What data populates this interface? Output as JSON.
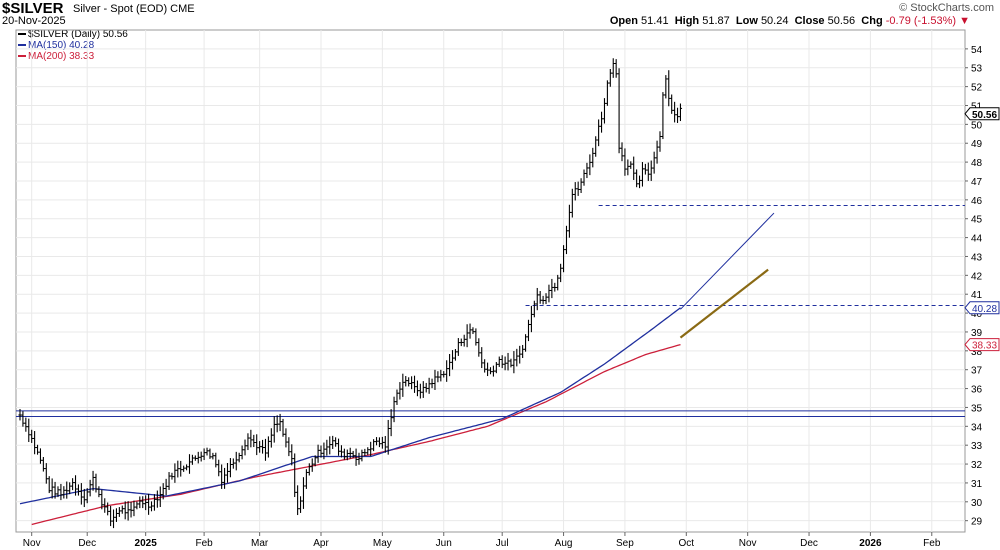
{
  "header": {
    "symbol": "$SILVER",
    "description": "Silver - Spot (EOD) CME",
    "date": "20-Nov-2025",
    "brand": "© StockCharts.com",
    "open_label": "Open",
    "open": "51.41",
    "high_label": "High",
    "high": "51.87",
    "low_label": "Low",
    "low": "50.24",
    "close_label": "Close",
    "close": "50.56",
    "chg_label": "Chg",
    "chg": "-0.79 (-1.53%)",
    "chg_arrow": "▼"
  },
  "legend": {
    "price": "$SILVER (Daily) 50.56",
    "ma150": "MA(150) 40.28",
    "ma200": "MA(200) 38.33"
  },
  "colors": {
    "price": "#000000",
    "ma150": "#1f2f9e",
    "ma200": "#cc1f3a",
    "trend_brown": "#8a6a14",
    "level": "#1f2f9e",
    "grid": "#e9e9e9"
  },
  "chart_data": {
    "type": "candlestick",
    "title": "$SILVER Silver - Spot (EOD) CME",
    "ylim": [
      28.4,
      55.0
    ],
    "y_ticks": [
      29,
      30,
      31,
      32,
      33,
      34,
      35,
      36,
      37,
      38,
      39,
      40,
      41,
      42,
      43,
      44,
      45,
      46,
      47,
      48,
      49,
      50,
      51,
      52,
      53,
      54
    ],
    "x_ticks": [
      "Nov",
      "Dec",
      "2025",
      "Feb",
      "Mar",
      "Apr",
      "May",
      "Jun",
      "Jul",
      "Aug",
      "Sep",
      "Oct",
      "Nov",
      "Dec",
      "2026",
      "Feb"
    ],
    "x_tick_index": [
      4,
      23,
      43,
      63,
      82,
      103,
      124,
      145,
      165,
      186,
      207,
      228,
      249,
      270,
      291,
      312
    ],
    "price_anchors": [
      [
        0,
        34.6
      ],
      [
        3,
        33.7
      ],
      [
        7,
        32.2
      ],
      [
        10,
        30.7
      ],
      [
        14,
        30.4
      ],
      [
        18,
        31.0
      ],
      [
        22,
        30.2
      ],
      [
        25,
        31.2
      ],
      [
        28,
        30.0
      ],
      [
        31,
        29.0
      ],
      [
        34,
        29.6
      ],
      [
        38,
        29.4
      ],
      [
        41,
        30.1
      ],
      [
        44,
        29.8
      ],
      [
        48,
        30.4
      ],
      [
        52,
        31.5
      ],
      [
        56,
        31.9
      ],
      [
        60,
        32.3
      ],
      [
        63,
        32.7
      ],
      [
        66,
        32.4
      ],
      [
        69,
        31.2
      ],
      [
        72,
        31.9
      ],
      [
        75,
        32.6
      ],
      [
        78,
        33.4
      ],
      [
        81,
        33.0
      ],
      [
        84,
        32.6
      ],
      [
        87,
        34.0
      ],
      [
        89,
        34.2
      ],
      [
        91,
        33.0
      ],
      [
        93,
        32.2
      ],
      [
        94,
        30.5
      ],
      [
        95,
        29.5
      ],
      [
        96,
        30.2
      ],
      [
        98,
        31.5
      ],
      [
        101,
        32.4
      ],
      [
        104,
        32.9
      ],
      [
        107,
        33.2
      ],
      [
        110,
        32.5
      ],
      [
        113,
        32.6
      ],
      [
        116,
        32.3
      ],
      [
        119,
        32.8
      ],
      [
        122,
        33.2
      ],
      [
        125,
        33.0
      ],
      [
        127,
        34.5
      ],
      [
        129,
        35.9
      ],
      [
        132,
        36.5
      ],
      [
        135,
        36.0
      ],
      [
        138,
        35.9
      ],
      [
        141,
        36.4
      ],
      [
        144,
        36.7
      ],
      [
        147,
        37.3
      ],
      [
        150,
        38.3
      ],
      [
        153,
        39.0
      ],
      [
        155,
        39.0
      ],
      [
        157,
        37.9
      ],
      [
        159,
        37.0
      ],
      [
        161,
        36.9
      ],
      [
        164,
        37.5
      ],
      [
        167,
        37.3
      ],
      [
        169,
        37.4
      ],
      [
        171,
        37.8
      ],
      [
        173,
        38.7
      ],
      [
        175,
        40.0
      ],
      [
        177,
        40.9
      ],
      [
        179,
        40.8
      ],
      [
        181,
        41.2
      ],
      [
        183,
        41.5
      ],
      [
        185,
        42.5
      ],
      [
        187,
        44.5
      ],
      [
        189,
        46.3
      ],
      [
        191,
        46.6
      ],
      [
        193,
        47.3
      ],
      [
        195,
        48.0
      ],
      [
        197,
        49.2
      ],
      [
        199,
        50.4
      ],
      [
        201,
        52.1
      ],
      [
        203,
        53.4
      ],
      [
        204,
        52.6
      ],
      [
        205,
        48.9
      ],
      [
        207,
        47.8
      ],
      [
        209,
        47.8
      ],
      [
        211,
        46.7
      ],
      [
        213,
        47.5
      ],
      [
        215,
        47.4
      ],
      [
        217,
        48.2
      ],
      [
        219,
        49.5
      ],
      [
        220,
        51.6
      ],
      [
        221,
        52.4
      ],
      [
        223,
        50.7
      ],
      [
        225,
        50.5
      ],
      [
        226,
        50.8
      ]
    ],
    "ma150": [
      [
        0,
        29.9
      ],
      [
        25,
        30.7
      ],
      [
        50,
        30.3
      ],
      [
        75,
        31.1
      ],
      [
        100,
        32.4
      ],
      [
        120,
        32.4
      ],
      [
        140,
        33.4
      ],
      [
        165,
        34.4
      ],
      [
        185,
        35.8
      ],
      [
        200,
        37.3
      ],
      [
        215,
        39.0
      ],
      [
        226,
        40.28
      ]
    ],
    "ma200": [
      [
        4,
        28.8
      ],
      [
        30,
        29.8
      ],
      [
        55,
        30.4
      ],
      [
        80,
        31.3
      ],
      [
        100,
        31.9
      ],
      [
        120,
        32.5
      ],
      [
        140,
        33.2
      ],
      [
        160,
        34.0
      ],
      [
        180,
        35.3
      ],
      [
        200,
        36.9
      ],
      [
        214,
        37.8
      ],
      [
        226,
        38.33
      ]
    ],
    "horizontal_levels": [
      {
        "price": 34.82,
        "style": "solid",
        "from": 0
      },
      {
        "price": 34.52,
        "style": "solid",
        "from": 0
      },
      {
        "price": 45.7,
        "style": "dashed",
        "from": 198
      },
      {
        "price": 40.4,
        "style": "dashed",
        "from": 173
      }
    ],
    "trendlines": [
      {
        "from": [
          226,
          40.2
        ],
        "to": [
          258,
          45.3
        ],
        "color": "ma150"
      },
      {
        "from": [
          226,
          38.7
        ],
        "to": [
          256,
          42.3
        ],
        "color": "trend_brown"
      }
    ],
    "last_labels": [
      {
        "price": 50.56,
        "text": "50.56",
        "style": "bold"
      },
      {
        "price": 40.28,
        "text": "40.28",
        "style": "ma150"
      },
      {
        "price": 38.33,
        "text": "38.33",
        "style": "ma200"
      }
    ]
  }
}
